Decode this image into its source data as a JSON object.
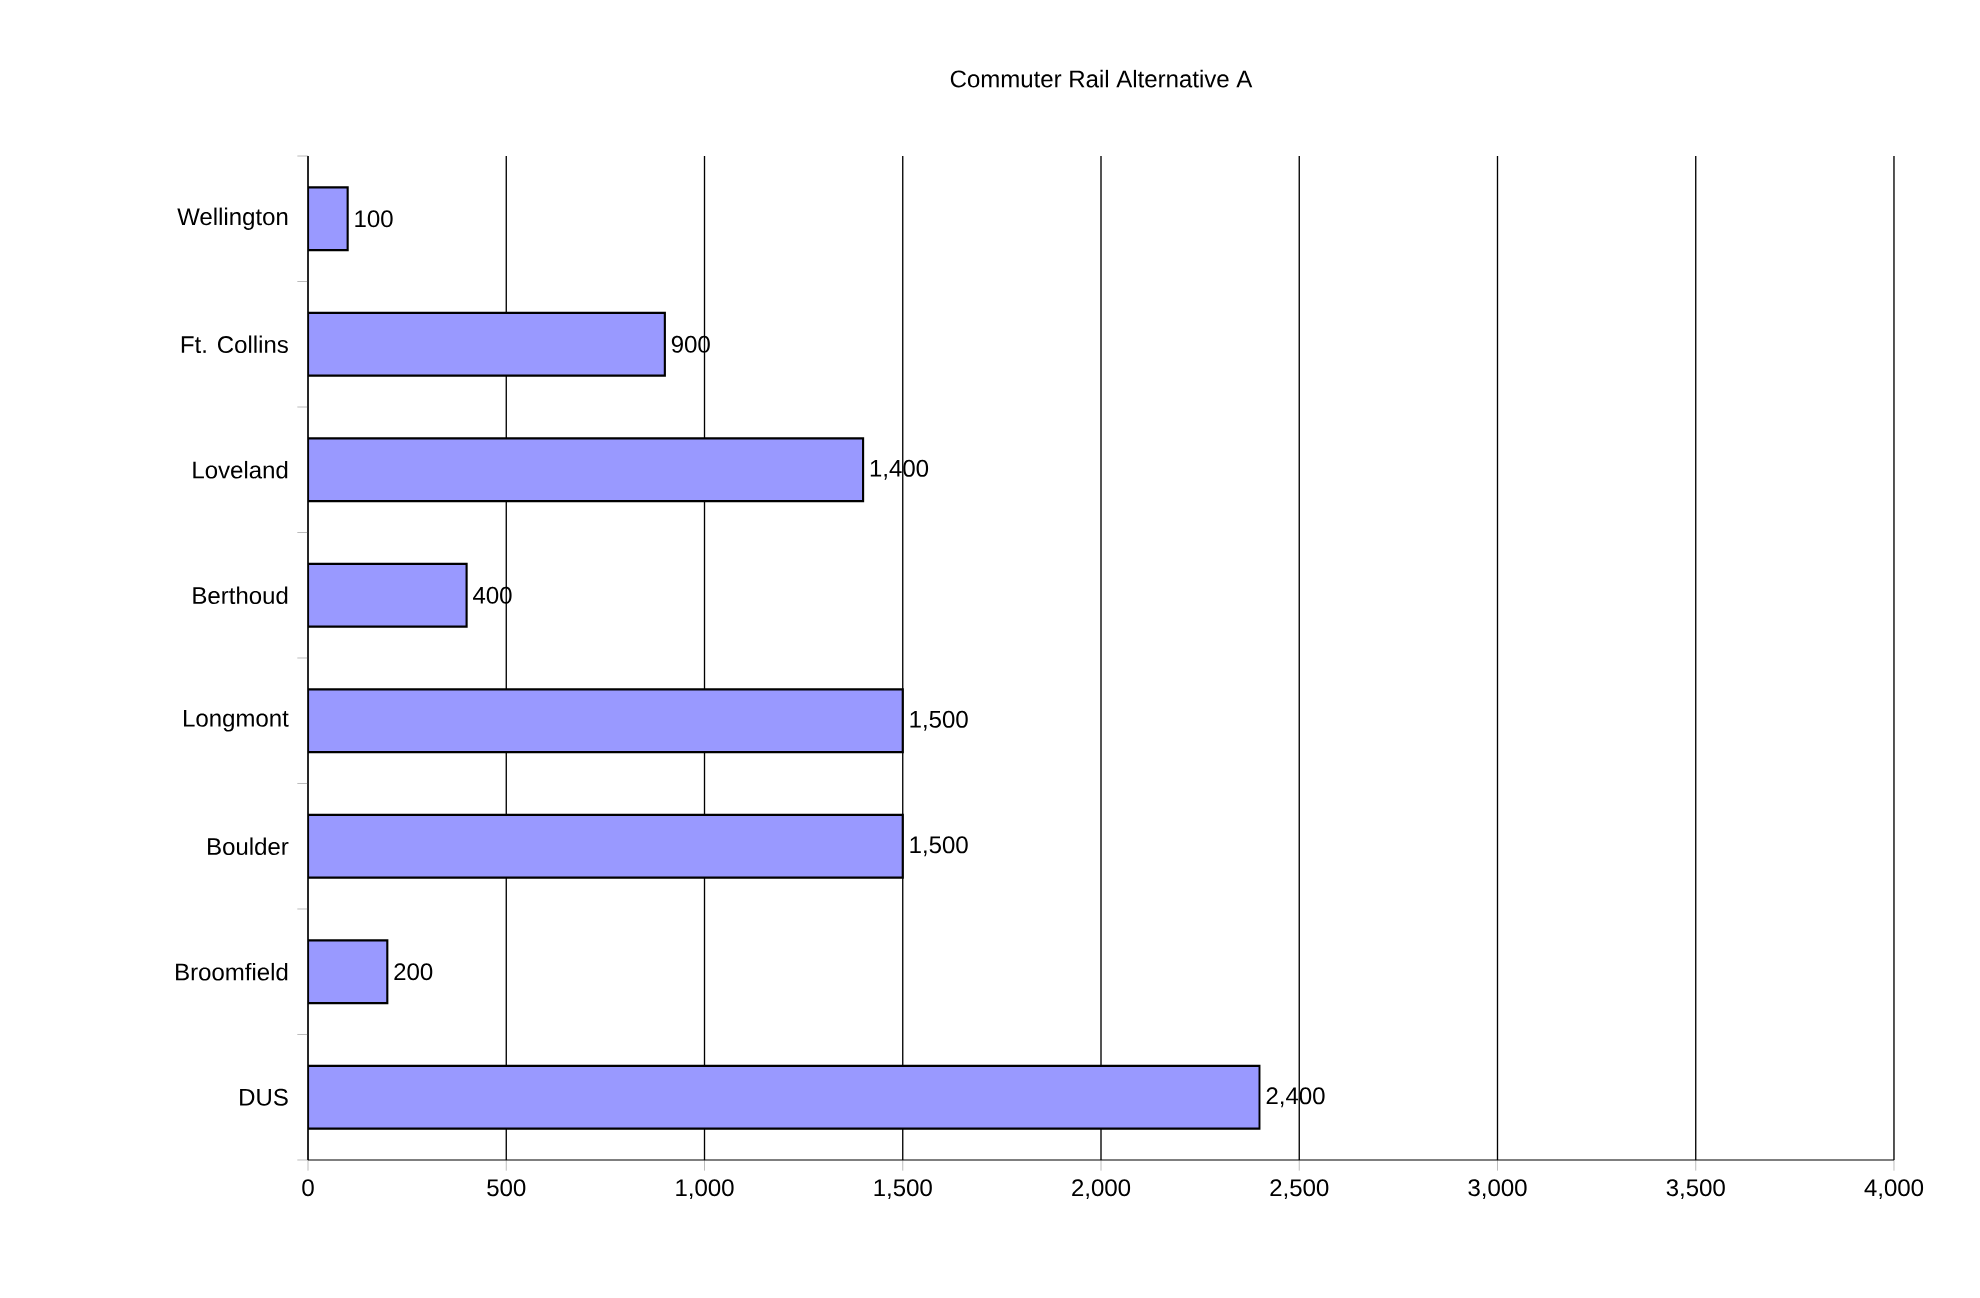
{
  "chart_data": {
    "type": "bar",
    "orientation": "horizontal",
    "title": "Commuter Rail Alternative A",
    "categories": [
      "Wellington",
      "Ft. Collins",
      "Loveland",
      "Berthoud",
      "Longmont",
      "Boulder",
      "Broomfield",
      "DUS"
    ],
    "values": [
      100,
      900,
      1400,
      400,
      1500,
      1500,
      200,
      2400
    ],
    "value_labels": [
      "100",
      "900",
      "1,400",
      "400",
      "1,500",
      "1,500",
      "200",
      "2,400"
    ],
    "color": "#9999ff",
    "xlim": [
      0,
      4000
    ],
    "xticks": [
      0,
      500,
      {
        "value": 1000,
        "label": "1,000"
      },
      {
        "value": 1500,
        "label": "1,500"
      },
      {
        "value": 2000,
        "label": "2,000"
      },
      {
        "value": 2500,
        "label": "2,500"
      },
      {
        "value": 3000,
        "label": "3,000"
      },
      {
        "value": 3500,
        "label": "3,500"
      },
      {
        "value": 4000,
        "label": "4,000"
      }
    ],
    "grid": "x"
  }
}
